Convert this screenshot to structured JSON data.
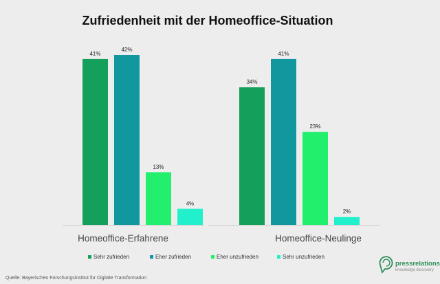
{
  "chart_data": {
    "type": "bar",
    "title": "Zufriedenheit mit der Homeoffice-Situation",
    "categories": [
      "Homeoffice-Erfahrene",
      "Homeoffice-Neulinge"
    ],
    "series": [
      {
        "name": "Sehr zufrieden",
        "color": "#14a05a",
        "values": [
          41,
          34
        ]
      },
      {
        "name": "Eher zufrieden",
        "color": "#11989f",
        "values": [
          42,
          41
        ]
      },
      {
        "name": "Eher unzufrieden",
        "color": "#22f06d",
        "values": [
          13,
          23
        ]
      },
      {
        "name": "Sehr unzufrieden",
        "color": "#22f0cd",
        "values": [
          4,
          2
        ]
      }
    ],
    "value_suffix": "%",
    "ylim": [
      0,
      42
    ],
    "legend_position": "bottom"
  },
  "source": "Quelle: Bayerisches Forschungsinstitut für Digitale Transformation",
  "logo": {
    "name": "pressrelations",
    "tagline": "knowledge discovery",
    "icon": "speech-bubble-icon",
    "color": "#2f8f5a"
  }
}
